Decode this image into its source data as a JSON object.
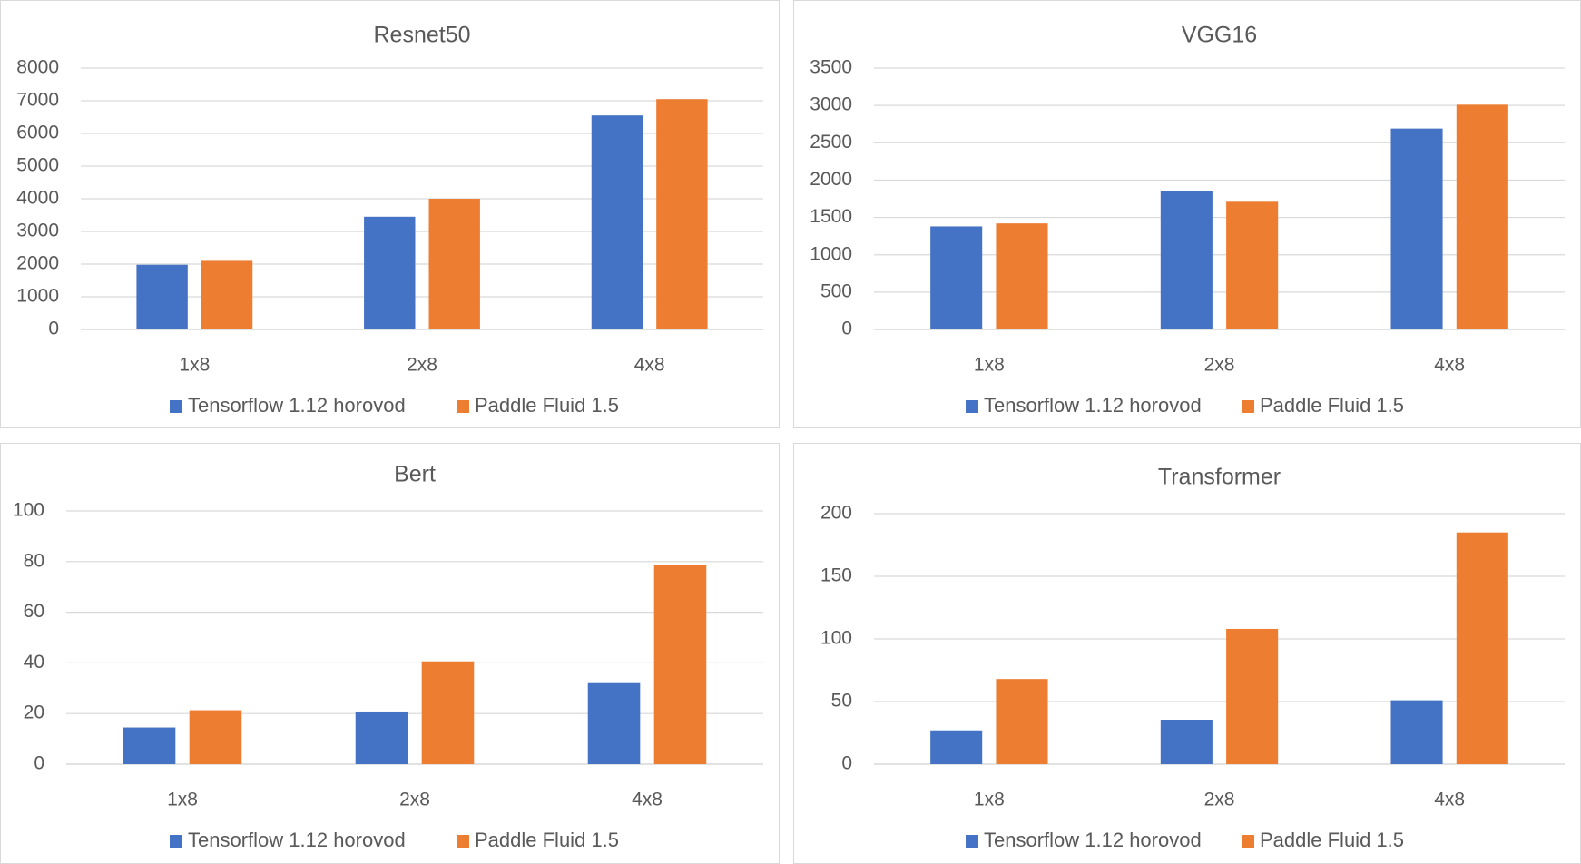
{
  "colors": {
    "series_0": "#4472C4",
    "series_1": "#ED7D31",
    "grid": "#d9d9d9",
    "text": "#595959"
  },
  "chart_data": [
    {
      "type": "bar",
      "title": "Resnet50",
      "categories": [
        "1x8",
        "2x8",
        "4x8"
      ],
      "series": [
        {
          "name": "Tensorflow 1.12 horovod",
          "values": [
            1980,
            3450,
            6550
          ]
        },
        {
          "name": "Paddle Fluid 1.5",
          "values": [
            2100,
            4000,
            7050
          ]
        }
      ],
      "ylim": [
        0,
        8000
      ],
      "yticks": [
        "0",
        "1000",
        "2000",
        "3000",
        "4000",
        "5000",
        "6000",
        "7000",
        "8000"
      ],
      "grid": true,
      "legend": "bottom"
    },
    {
      "type": "bar",
      "title": "VGG16",
      "categories": [
        "1x8",
        "2x8",
        "4x8"
      ],
      "series": [
        {
          "name": "Tensorflow 1.12 horovod",
          "values": [
            1380,
            1850,
            2690
          ]
        },
        {
          "name": "Paddle Fluid 1.5",
          "values": [
            1420,
            1710,
            3010
          ]
        }
      ],
      "ylim": [
        0,
        3500
      ],
      "yticks": [
        "0",
        "500",
        "1000",
        "1500",
        "2000",
        "2500",
        "3000",
        "3500"
      ],
      "grid": true,
      "legend": "bottom"
    },
    {
      "type": "bar",
      "title": "Bert",
      "categories": [
        "1x8",
        "2x8",
        "4x8"
      ],
      "series": [
        {
          "name": "Tensorflow 1.12 horovod",
          "values": [
            14.5,
            20.8,
            32
          ]
        },
        {
          "name": "Paddle Fluid 1.5",
          "values": [
            21.3,
            40.6,
            78.8
          ]
        }
      ],
      "ylim": [
        0,
        100
      ],
      "yticks": [
        "0",
        "20",
        "40",
        "60",
        "80",
        "100"
      ],
      "grid": true,
      "legend": "bottom"
    },
    {
      "type": "bar",
      "title": "Transformer",
      "categories": [
        "1x8",
        "2x8",
        "4x8"
      ],
      "series": [
        {
          "name": "Tensorflow 1.12 horovod",
          "values": [
            27,
            35.5,
            51
          ]
        },
        {
          "name": "Paddle Fluid 1.5",
          "values": [
            68,
            108,
            185
          ]
        }
      ],
      "ylim": [
        0,
        200
      ],
      "yticks": [
        "0",
        "50",
        "100",
        "150",
        "200"
      ],
      "grid": true,
      "legend": "bottom"
    }
  ]
}
